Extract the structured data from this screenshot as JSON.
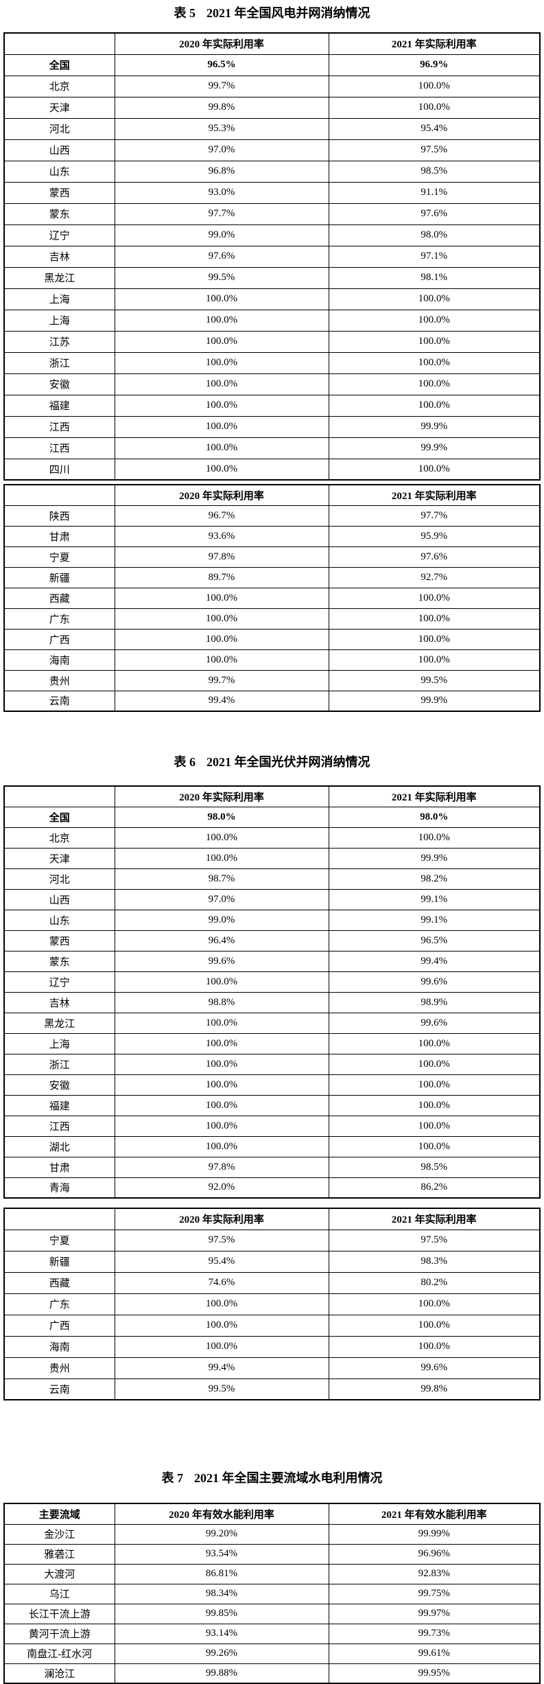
{
  "page": {
    "background": "#ffffff",
    "text_color": "#000000",
    "border_color": "#000000"
  },
  "tables": [
    {
      "caption": {
        "prefix": "表 5",
        "text": "2021 年全国风电并网消纳情况"
      },
      "sections": [
        {
          "headers": [
            "",
            "2020 年实际利用率",
            "2021 年实际利用率"
          ],
          "bold_rows": [
            0
          ],
          "rows": [
            [
              "全国",
              "96.5%",
              "96.9%"
            ],
            [
              "北京",
              "99.7%",
              "100.0%"
            ],
            [
              "天津",
              "99.8%",
              "100.0%"
            ],
            [
              "河北",
              "95.3%",
              "95.4%"
            ],
            [
              "山西",
              "97.0%",
              "97.5%"
            ],
            [
              "山东",
              "96.8%",
              "98.5%"
            ],
            [
              "蒙西",
              "93.0%",
              "91.1%"
            ],
            [
              "蒙东",
              "97.7%",
              "97.6%"
            ],
            [
              "辽宁",
              "99.0%",
              "98.0%"
            ],
            [
              "吉林",
              "97.6%",
              "97.1%"
            ],
            [
              "黑龙江",
              "99.5%",
              "98.1%"
            ],
            [
              "上海",
              "100.0%",
              "100.0%"
            ],
            [
              "上海",
              "100.0%",
              "100.0%"
            ],
            [
              "江苏",
              "100.0%",
              "100.0%"
            ],
            [
              "浙江",
              "100.0%",
              "100.0%"
            ],
            [
              "安徽",
              "100.0%",
              "100.0%"
            ],
            [
              "福建",
              "100.0%",
              "100.0%"
            ],
            [
              "江西",
              "100.0%",
              "99.9%"
            ],
            [
              "江西",
              "100.0%",
              "99.9%"
            ],
            [
              "四川",
              "100.0%",
              "100.0%"
            ]
          ]
        },
        {
          "headers": [
            "",
            "2020 年实际利用率",
            "2021 年实际利用率"
          ],
          "bold_rows": [],
          "rows": [
            [
              "陕西",
              "96.7%",
              "97.7%"
            ],
            [
              "甘肃",
              "93.6%",
              "95.9%"
            ],
            [
              "宁夏",
              "97.8%",
              "97.6%"
            ],
            [
              "新疆",
              "89.7%",
              "92.7%"
            ],
            [
              "西藏",
              "100.0%",
              "100.0%"
            ],
            [
              "广东",
              "100.0%",
              "100.0%"
            ],
            [
              "广西",
              "100.0%",
              "100.0%"
            ],
            [
              "海南",
              "100.0%",
              "100.0%"
            ],
            [
              "贵州",
              "99.7%",
              "99.5%"
            ],
            [
              "云南",
              "99.4%",
              "99.9%"
            ]
          ]
        }
      ]
    },
    {
      "caption": {
        "prefix": "表 6",
        "text": "2021 年全国光伏并网消纳情况"
      },
      "sections": [
        {
          "headers": [
            "",
            "2020 年实际利用率",
            "2021 年实际利用率"
          ],
          "bold_rows": [
            0
          ],
          "rows": [
            [
              "全国",
              "98.0%",
              "98.0%"
            ],
            [
              "北京",
              "100.0%",
              "100.0%"
            ],
            [
              "天津",
              "100.0%",
              "99.9%"
            ],
            [
              "河北",
              "98.7%",
              "98.2%"
            ],
            [
              "山西",
              "97.0%",
              "99.1%"
            ],
            [
              "山东",
              "99.0%",
              "99.1%"
            ],
            [
              "蒙西",
              "96.4%",
              "96.5%"
            ],
            [
              "蒙东",
              "99.6%",
              "99.4%"
            ],
            [
              "辽宁",
              "100.0%",
              "99.6%"
            ],
            [
              "吉林",
              "98.8%",
              "98.9%"
            ],
            [
              "黑龙江",
              "100.0%",
              "99.6%"
            ],
            [
              "上海",
              "100.0%",
              "100.0%"
            ],
            [
              "浙江",
              "100.0%",
              "100.0%"
            ],
            [
              "安徽",
              "100.0%",
              "100.0%"
            ],
            [
              "福建",
              "100.0%",
              "100.0%"
            ],
            [
              "江西",
              "100.0%",
              "100.0%"
            ],
            [
              "湖北",
              "100.0%",
              "100.0%"
            ],
            [
              "甘肃",
              "97.8%",
              "98.5%"
            ],
            [
              "青海",
              "92.0%",
              "86.2%"
            ]
          ]
        },
        {
          "headers": [
            "",
            "2020 年实际利用率",
            "2021 年实际利用率"
          ],
          "bold_rows": [],
          "rows": [
            [
              "宁夏",
              "97.5%",
              "97.5%"
            ],
            [
              "新疆",
              "95.4%",
              "98.3%"
            ],
            [
              "西藏",
              "74.6%",
              "80.2%"
            ],
            [
              "广东",
              "100.0%",
              "100.0%"
            ],
            [
              "广西",
              "100.0%",
              "100.0%"
            ],
            [
              "海南",
              "100.0%",
              "100.0%"
            ],
            [
              "贵州",
              "99.4%",
              "99.6%"
            ],
            [
              "云南",
              "99.5%",
              "99.8%"
            ]
          ]
        }
      ]
    },
    {
      "caption": {
        "prefix": "表 7",
        "text": "2021 年全国主要流域水电利用情况"
      },
      "sections": [
        {
          "headers": [
            "主要流域",
            "2020 年有效水能利用率",
            "2021 年有效水能利用率"
          ],
          "bold_rows": [],
          "rows": [
            [
              "金沙江",
              "99.20%",
              "99.99%"
            ],
            [
              "雅砻江",
              "93.54%",
              "96.96%"
            ],
            [
              "大渡河",
              "86.81%",
              "92.83%"
            ],
            [
              "乌江",
              "98.34%",
              "99.75%"
            ],
            [
              "长江干流上游",
              "99.85%",
              "99.97%"
            ],
            [
              "黄河干流上游",
              "93.14%",
              "99.73%"
            ],
            [
              "南盘江-红水河",
              "99.26%",
              "99.61%"
            ],
            [
              "澜沧江",
              "99.88%",
              "99.95%"
            ]
          ]
        }
      ]
    }
  ]
}
